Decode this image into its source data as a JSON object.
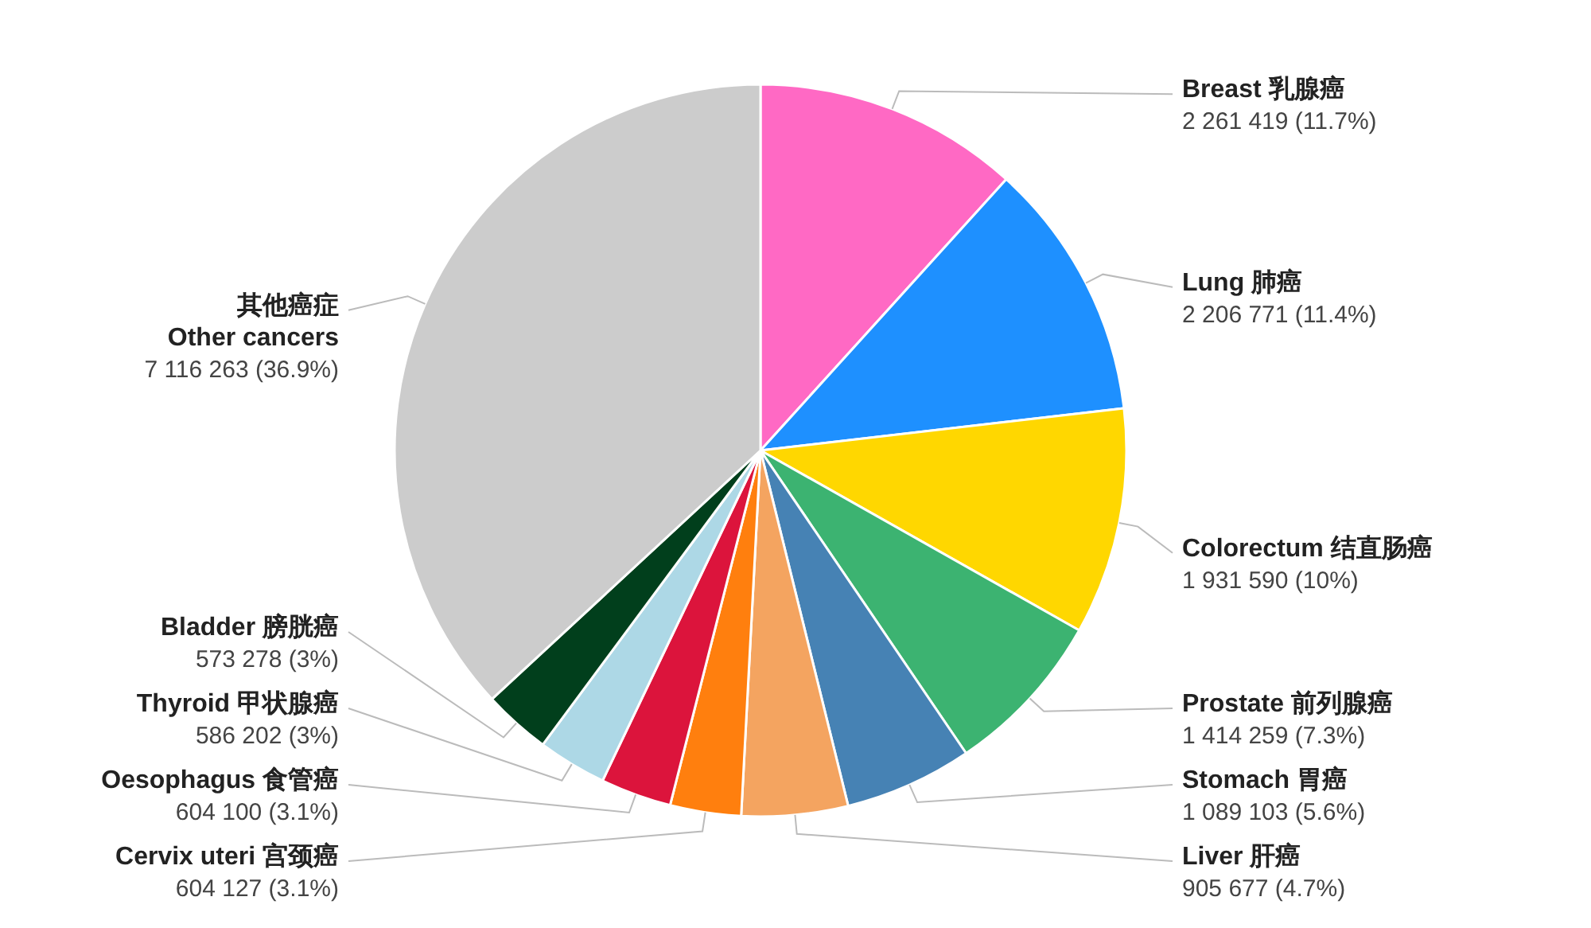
{
  "chart_data": {
    "type": "pie",
    "categories": [
      "Breast  乳腺癌",
      "Lung  肺癌",
      "Colorectum  结直肠癌",
      "Prostate  前列腺癌",
      "Stomach  胃癌",
      "Liver  肝癌",
      "Cervix uteri  宫颈癌",
      "Oesophagus  食管癌",
      "Thyroid  甲状腺癌",
      "Bladder  膀胱癌",
      "其他癌症\nOther cancers"
    ],
    "values": [
      2261419,
      2206771,
      1931590,
      1414259,
      1089103,
      905677,
      604127,
      604100,
      586202,
      573278,
      7116263
    ],
    "value_labels": [
      "2 261 419 (11.7%)",
      "2 206 771 (11.4%)",
      "1 931 590 (10%)",
      "1 414 259 (7.3%)",
      "1 089 103 (5.6%)",
      "905 677 (4.7%)",
      "604 127 (3.1%)",
      "604 100 (3.1%)",
      "586 202 (3%)",
      "573 278 (3%)",
      "7 116 263 (36.9%)"
    ],
    "colors": [
      "#ff69c4",
      "#1e90ff",
      "#ffd700",
      "#3cb371",
      "#4682b4",
      "#f4a460",
      "#ff7f0e",
      "#dc143c",
      "#add8e6",
      "#013f1c",
      "#cccccc"
    ]
  }
}
